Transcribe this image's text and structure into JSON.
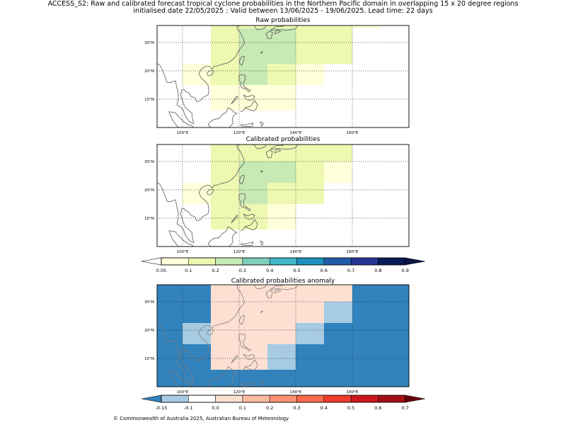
{
  "header": {
    "line1": "ACCESS_S2: Raw and calibrated forecast tropical cyclone probabilities in the Northern Pacific domain in overlapping 15 x 20 degree regions",
    "line2": "initialised date 22/05/2025 :  Valid between 13/06/2025 - 19/06/2025. Lead time: 22 days"
  },
  "panels": {
    "raw": {
      "title": "Raw probabilities"
    },
    "calibrated": {
      "title": "Calibrated probabilities"
    },
    "anomaly": {
      "title": "Calibrated probabilities anomaly"
    }
  },
  "axes": {
    "lon_labels": [
      "100°E",
      "120°E",
      "140°E",
      "160°E"
    ],
    "lat_labels": [
      "10°N",
      "20°N",
      "30°N"
    ],
    "lon_range": [
      91,
      180
    ],
    "lat_range": [
      0,
      36
    ],
    "lon_ticks": [
      100,
      120,
      140,
      160
    ],
    "lat_ticks": [
      10,
      20,
      30
    ]
  },
  "colorbars": {
    "probability": {
      "labels": [
        "0.05",
        "0.1",
        "0.2",
        "0.3",
        "0.4",
        "0.5",
        "0.6",
        "0.7",
        "0.8",
        "0.9"
      ],
      "colors": [
        "#ffffd9",
        "#edf8b1",
        "#c7e9b4",
        "#7fcdbb",
        "#41b6c4",
        "#1d91c0",
        "#225ea8",
        "#253494",
        "#081d58"
      ],
      "under": "#ffffff",
      "over": "#0a1640"
    },
    "anomaly": {
      "labels": [
        "-0.15",
        "-0.1",
        "0.0",
        "0.1",
        "0.2",
        "0.3",
        "0.4",
        "0.5",
        "0.6",
        "0.7"
      ],
      "colors": [
        "#a6cbe2",
        "#ffffff",
        "#fee0d2",
        "#fcbba1",
        "#fc9272",
        "#fb6a4a",
        "#ef3b2c",
        "#cb181d",
        "#a50f15"
      ],
      "under": "#3182bd",
      "over": "#67000d"
    }
  },
  "chart_data": [
    {
      "type": "heatmap",
      "title": "Raw probabilities",
      "cells": [
        {
          "lon": [
            110,
            120
          ],
          "lat": [
            35,
            37
          ],
          "value": 0.1
        },
        {
          "lon": [
            120,
            130
          ],
          "lat": [
            35,
            37
          ],
          "value": 0.1
        },
        {
          "lon": [
            130,
            140
          ],
          "lat": [
            35,
            37
          ],
          "value": 0.1
        },
        {
          "lon": [
            140,
            150
          ],
          "lat": [
            35,
            37
          ],
          "value": 0.1
        },
        {
          "lon": [
            150,
            160
          ],
          "lat": [
            35,
            37
          ],
          "value": 0.1
        },
        {
          "lon": [
            160,
            170
          ],
          "lat": [
            35,
            37
          ],
          "value": 0.05
        },
        {
          "lon": [
            110,
            120
          ],
          "lat": [
            22.5,
            35
          ],
          "value": 0.1
        },
        {
          "lon": [
            120,
            130
          ],
          "lat": [
            22.5,
            35
          ],
          "value": 0.2
        },
        {
          "lon": [
            130,
            140
          ],
          "lat": [
            22.5,
            35
          ],
          "value": 0.2
        },
        {
          "lon": [
            140,
            150
          ],
          "lat": [
            22.5,
            35
          ],
          "value": 0.1
        },
        {
          "lon": [
            150,
            160
          ],
          "lat": [
            22.5,
            35
          ],
          "value": 0.1
        },
        {
          "lon": [
            100,
            110
          ],
          "lat": [
            15,
            22.5
          ],
          "value": 0.05
        },
        {
          "lon": [
            110,
            120
          ],
          "lat": [
            15,
            22.5
          ],
          "value": 0.1
        },
        {
          "lon": [
            120,
            130
          ],
          "lat": [
            15,
            22.5
          ],
          "value": 0.2
        },
        {
          "lon": [
            130,
            140
          ],
          "lat": [
            15,
            22.5
          ],
          "value": 0.1
        },
        {
          "lon": [
            140,
            150
          ],
          "lat": [
            15,
            22.5
          ],
          "value": 0.05
        },
        {
          "lon": [
            110,
            120
          ],
          "lat": [
            6,
            15
          ],
          "value": 0.05
        },
        {
          "lon": [
            120,
            130
          ],
          "lat": [
            6,
            15
          ],
          "value": 0.05
        },
        {
          "lon": [
            130,
            140
          ],
          "lat": [
            6,
            15
          ],
          "value": 0.05
        }
      ]
    },
    {
      "type": "heatmap",
      "title": "Calibrated probabilities",
      "cells": [
        {
          "lon": [
            110,
            120
          ],
          "lat": [
            30,
            37
          ],
          "value": 0.1
        },
        {
          "lon": [
            120,
            130
          ],
          "lat": [
            30,
            37
          ],
          "value": 0.1
        },
        {
          "lon": [
            130,
            140
          ],
          "lat": [
            30,
            37
          ],
          "value": 0.1
        },
        {
          "lon": [
            140,
            150
          ],
          "lat": [
            30,
            37
          ],
          "value": 0.1
        },
        {
          "lon": [
            150,
            160
          ],
          "lat": [
            30,
            37
          ],
          "value": 0.1
        },
        {
          "lon": [
            110,
            120
          ],
          "lat": [
            22.5,
            30
          ],
          "value": 0.1
        },
        {
          "lon": [
            120,
            130
          ],
          "lat": [
            22.5,
            30
          ],
          "value": 0.2
        },
        {
          "lon": [
            130,
            140
          ],
          "lat": [
            22.5,
            30
          ],
          "value": 0.2
        },
        {
          "lon": [
            140,
            150
          ],
          "lat": [
            22.5,
            30
          ],
          "value": 0.1
        },
        {
          "lon": [
            150,
            160
          ],
          "lat": [
            22.5,
            30
          ],
          "value": 0.05
        },
        {
          "lon": [
            100,
            110
          ],
          "lat": [
            15,
            22.5
          ],
          "value": 0.05
        },
        {
          "lon": [
            110,
            120
          ],
          "lat": [
            15,
            22.5
          ],
          "value": 0.1
        },
        {
          "lon": [
            120,
            130
          ],
          "lat": [
            15,
            22.5
          ],
          "value": 0.2
        },
        {
          "lon": [
            130,
            140
          ],
          "lat": [
            15,
            22.5
          ],
          "value": 0.1
        },
        {
          "lon": [
            140,
            150
          ],
          "lat": [
            15,
            22.5
          ],
          "value": 0.1
        },
        {
          "lon": [
            110,
            120
          ],
          "lat": [
            6,
            15
          ],
          "value": 0.1
        },
        {
          "lon": [
            120,
            130
          ],
          "lat": [
            6,
            15
          ],
          "value": 0.1
        },
        {
          "lon": [
            130,
            140
          ],
          "lat": [
            6,
            15
          ],
          "value": 0.05
        }
      ]
    },
    {
      "type": "heatmap",
      "title": "Calibrated probabilities anomaly",
      "background_value": -0.2,
      "cells": [
        {
          "lon": [
            110,
            120
          ],
          "lat": [
            30,
            37
          ],
          "value": 0.0
        },
        {
          "lon": [
            120,
            130
          ],
          "lat": [
            30,
            37
          ],
          "value": 0.05
        },
        {
          "lon": [
            130,
            140
          ],
          "lat": [
            30,
            37
          ],
          "value": 0.05
        },
        {
          "lon": [
            140,
            150
          ],
          "lat": [
            30,
            37
          ],
          "value": 0.0
        },
        {
          "lon": [
            150,
            160
          ],
          "lat": [
            30,
            37
          ],
          "value": 0.0
        },
        {
          "lon": [
            110,
            120
          ],
          "lat": [
            22.5,
            30
          ],
          "value": 0.0
        },
        {
          "lon": [
            120,
            130
          ],
          "lat": [
            22.5,
            30
          ],
          "value": 0.05
        },
        {
          "lon": [
            130,
            140
          ],
          "lat": [
            22.5,
            30
          ],
          "value": 0.05
        },
        {
          "lon": [
            140,
            150
          ],
          "lat": [
            22.5,
            30
          ],
          "value": 0.0
        },
        {
          "lon": [
            150,
            160
          ],
          "lat": [
            22.5,
            30
          ],
          "value": -0.12
        },
        {
          "lon": [
            100,
            110
          ],
          "lat": [
            15,
            22.5
          ],
          "value": -0.12
        },
        {
          "lon": [
            110,
            120
          ],
          "lat": [
            15,
            22.5
          ],
          "value": 0.0
        },
        {
          "lon": [
            120,
            130
          ],
          "lat": [
            15,
            22.5
          ],
          "value": 0.05
        },
        {
          "lon": [
            130,
            140
          ],
          "lat": [
            15,
            22.5
          ],
          "value": 0.0
        },
        {
          "lon": [
            140,
            150
          ],
          "lat": [
            15,
            22.5
          ],
          "value": -0.12
        },
        {
          "lon": [
            110,
            120
          ],
          "lat": [
            6,
            15
          ],
          "value": 0.0
        },
        {
          "lon": [
            120,
            130
          ],
          "lat": [
            6,
            15
          ],
          "value": 0.0
        },
        {
          "lon": [
            130,
            140
          ],
          "lat": [
            6,
            15
          ],
          "value": -0.12
        }
      ]
    }
  ],
  "footer": {
    "copyright": "© Commonwealth of Australia 2025, Australian Bureau of Meteorology"
  }
}
